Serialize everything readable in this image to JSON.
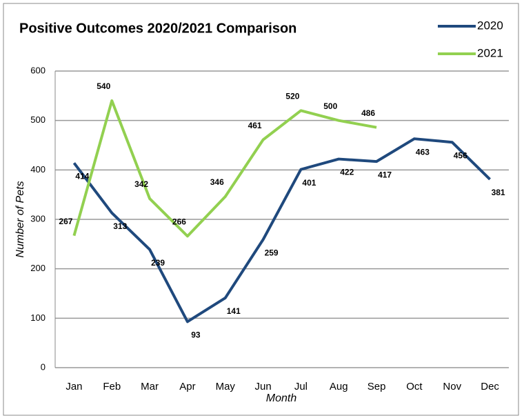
{
  "chart_data": {
    "type": "line",
    "title": "Positive Outcomes 2020/2021 Comparison",
    "x_label": "Month",
    "y_label": "Number of Pets",
    "categories": [
      "Jan",
      "Feb",
      "Mar",
      "Apr",
      "May",
      "Jun",
      "Jul",
      "Aug",
      "Sep",
      "Oct",
      "Nov",
      "Dec"
    ],
    "series": [
      {
        "name": "2020",
        "color": "#1f497d",
        "values": [
          414,
          313,
          239,
          93,
          141,
          259,
          401,
          422,
          417,
          463,
          456,
          381
        ]
      },
      {
        "name": "2021",
        "color": "#92d050",
        "values": [
          267,
          540,
          342,
          266,
          346,
          461,
          520,
          500,
          486,
          null,
          null,
          null
        ]
      }
    ],
    "ylim": [
      0,
      600
    ],
    "yticks": [
      0,
      100,
      200,
      300,
      400,
      500,
      600
    ],
    "grid": true,
    "legend": "top-right"
  }
}
